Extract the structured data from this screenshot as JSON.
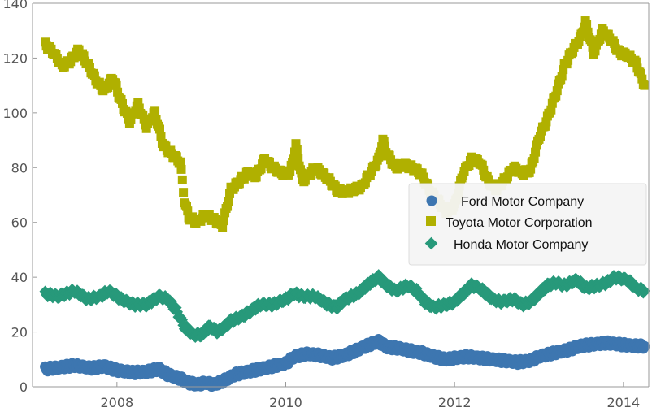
{
  "chart_data": {
    "type": "scatter",
    "xlim": [
      2007.0,
      2014.3
    ],
    "ylim": [
      0,
      140
    ],
    "x_ticks": [
      2008,
      2010,
      2012,
      2014
    ],
    "y_ticks": [
      0,
      20,
      40,
      60,
      80,
      100,
      120,
      140
    ],
    "x_tick_labels": [
      "2008",
      "2010",
      "2012",
      "2014"
    ],
    "y_tick_labels": [
      "0",
      "20",
      "40",
      "60",
      "80",
      "100",
      "120",
      "140"
    ],
    "grid": false,
    "legend_position": "center-right",
    "series": [
      {
        "name": "Ford Motor Company",
        "marker": "circle",
        "color": "#3d76b0",
        "points": [
          [
            2007.15,
            6.5
          ],
          [
            2007.3,
            7.0
          ],
          [
            2007.5,
            7.8
          ],
          [
            2007.7,
            6.8
          ],
          [
            2007.85,
            7.5
          ],
          [
            2008.0,
            6.0
          ],
          [
            2008.2,
            5.2
          ],
          [
            2008.35,
            5.5
          ],
          [
            2008.5,
            6.5
          ],
          [
            2008.6,
            4.5
          ],
          [
            2008.75,
            3.0
          ],
          [
            2008.85,
            1.5
          ],
          [
            2008.95,
            0.8
          ],
          [
            2009.05,
            1.5
          ],
          [
            2009.15,
            0.8
          ],
          [
            2009.25,
            2.0
          ],
          [
            2009.4,
            4.5
          ],
          [
            2009.55,
            5.5
          ],
          [
            2009.7,
            6.5
          ],
          [
            2009.85,
            7.5
          ],
          [
            2010.0,
            8.5
          ],
          [
            2010.1,
            11.0
          ],
          [
            2010.25,
            12.0
          ],
          [
            2010.4,
            11.5
          ],
          [
            2010.55,
            10.5
          ],
          [
            2010.7,
            11.5
          ],
          [
            2010.85,
            13.5
          ],
          [
            2011.0,
            15.5
          ],
          [
            2011.1,
            16.5
          ],
          [
            2011.2,
            14.5
          ],
          [
            2011.35,
            14.0
          ],
          [
            2011.5,
            13.0
          ],
          [
            2011.6,
            12.5
          ],
          [
            2011.75,
            11.0
          ],
          [
            2011.9,
            10.0
          ],
          [
            2012.0,
            10.5
          ],
          [
            2012.15,
            11.0
          ],
          [
            2012.3,
            10.5
          ],
          [
            2012.45,
            10.0
          ],
          [
            2012.6,
            9.5
          ],
          [
            2012.75,
            9.0
          ],
          [
            2012.9,
            9.5
          ],
          [
            2013.0,
            11.0
          ],
          [
            2013.2,
            12.5
          ],
          [
            2013.35,
            13.5
          ],
          [
            2013.5,
            15.0
          ],
          [
            2013.65,
            15.5
          ],
          [
            2013.8,
            16.0
          ],
          [
            2013.95,
            15.5
          ],
          [
            2014.1,
            15.0
          ],
          [
            2014.25,
            14.8
          ]
        ]
      },
      {
        "name": "Toyota Motor Corporation",
        "marker": "square",
        "color": "#b0b000",
        "points": [
          [
            2007.15,
            125
          ],
          [
            2007.25,
            122
          ],
          [
            2007.35,
            117
          ],
          [
            2007.45,
            119
          ],
          [
            2007.55,
            123
          ],
          [
            2007.65,
            118
          ],
          [
            2007.75,
            112
          ],
          [
            2007.85,
            108
          ],
          [
            2007.95,
            113
          ],
          [
            2008.05,
            104
          ],
          [
            2008.15,
            97
          ],
          [
            2008.25,
            103
          ],
          [
            2008.35,
            95
          ],
          [
            2008.45,
            100
          ],
          [
            2008.55,
            88
          ],
          [
            2008.65,
            85
          ],
          [
            2008.75,
            82
          ],
          [
            2008.8,
            68
          ],
          [
            2008.85,
            62
          ],
          [
            2008.95,
            60
          ],
          [
            2009.05,
            63
          ],
          [
            2009.15,
            61
          ],
          [
            2009.25,
            59
          ],
          [
            2009.35,
            72
          ],
          [
            2009.45,
            75
          ],
          [
            2009.55,
            78
          ],
          [
            2009.65,
            77
          ],
          [
            2009.75,
            83
          ],
          [
            2009.85,
            80
          ],
          [
            2009.95,
            78
          ],
          [
            2010.05,
            78
          ],
          [
            2010.12,
            88
          ],
          [
            2010.2,
            75
          ],
          [
            2010.35,
            80
          ],
          [
            2010.5,
            76
          ],
          [
            2010.6,
            72
          ],
          [
            2010.7,
            71
          ],
          [
            2010.8,
            72
          ],
          [
            2010.9,
            73
          ],
          [
            2011.0,
            78
          ],
          [
            2011.1,
            83
          ],
          [
            2011.15,
            90
          ],
          [
            2011.2,
            85
          ],
          [
            2011.3,
            80
          ],
          [
            2011.4,
            81
          ],
          [
            2011.5,
            80
          ],
          [
            2011.6,
            78
          ],
          [
            2011.7,
            72
          ],
          [
            2011.8,
            68
          ],
          [
            2011.9,
            64
          ],
          [
            2012.0,
            66
          ],
          [
            2012.1,
            78
          ],
          [
            2012.2,
            83
          ],
          [
            2012.3,
            82
          ],
          [
            2012.4,
            75
          ],
          [
            2012.5,
            72
          ],
          [
            2012.6,
            76
          ],
          [
            2012.7,
            80
          ],
          [
            2012.8,
            78
          ],
          [
            2012.9,
            79
          ],
          [
            2013.0,
            91
          ],
          [
            2013.1,
            98
          ],
          [
            2013.2,
            107
          ],
          [
            2013.3,
            117
          ],
          [
            2013.4,
            123
          ],
          [
            2013.5,
            128
          ],
          [
            2013.55,
            133
          ],
          [
            2013.65,
            122
          ],
          [
            2013.75,
            130
          ],
          [
            2013.85,
            127
          ],
          [
            2013.95,
            122
          ],
          [
            2014.05,
            121
          ],
          [
            2014.15,
            118
          ],
          [
            2014.25,
            110
          ]
        ]
      },
      {
        "name": "Honda Motor Company",
        "marker": "diamond",
        "color": "#27997a",
        "points": [
          [
            2007.15,
            34
          ],
          [
            2007.3,
            33
          ],
          [
            2007.5,
            35
          ],
          [
            2007.65,
            32
          ],
          [
            2007.8,
            33
          ],
          [
            2007.9,
            35
          ],
          [
            2008.05,
            32
          ],
          [
            2008.2,
            30
          ],
          [
            2008.35,
            30
          ],
          [
            2008.5,
            33
          ],
          [
            2008.6,
            32
          ],
          [
            2008.7,
            28
          ],
          [
            2008.8,
            22
          ],
          [
            2008.9,
            19
          ],
          [
            2009.0,
            19
          ],
          [
            2009.1,
            22
          ],
          [
            2009.2,
            20
          ],
          [
            2009.35,
            24
          ],
          [
            2009.5,
            26
          ],
          [
            2009.6,
            28
          ],
          [
            2009.7,
            30
          ],
          [
            2009.85,
            30
          ],
          [
            2010.0,
            32
          ],
          [
            2010.1,
            34
          ],
          [
            2010.2,
            33
          ],
          [
            2010.35,
            33
          ],
          [
            2010.5,
            30
          ],
          [
            2010.6,
            29
          ],
          [
            2010.7,
            32
          ],
          [
            2010.85,
            34
          ],
          [
            2011.0,
            38
          ],
          [
            2011.1,
            40
          ],
          [
            2011.2,
            37
          ],
          [
            2011.3,
            35
          ],
          [
            2011.45,
            37
          ],
          [
            2011.55,
            35
          ],
          [
            2011.65,
            31
          ],
          [
            2011.75,
            29
          ],
          [
            2011.9,
            30
          ],
          [
            2012.0,
            31
          ],
          [
            2012.1,
            34
          ],
          [
            2012.2,
            37
          ],
          [
            2012.3,
            36
          ],
          [
            2012.45,
            32
          ],
          [
            2012.55,
            31
          ],
          [
            2012.7,
            32
          ],
          [
            2012.8,
            30
          ],
          [
            2012.9,
            31
          ],
          [
            2013.0,
            34
          ],
          [
            2013.1,
            37
          ],
          [
            2013.2,
            38
          ],
          [
            2013.3,
            37
          ],
          [
            2013.45,
            39
          ],
          [
            2013.55,
            36
          ],
          [
            2013.7,
            37
          ],
          [
            2013.8,
            38
          ],
          [
            2013.9,
            40
          ],
          [
            2014.05,
            39
          ],
          [
            2014.15,
            36
          ],
          [
            2014.25,
            35
          ]
        ]
      }
    ]
  }
}
